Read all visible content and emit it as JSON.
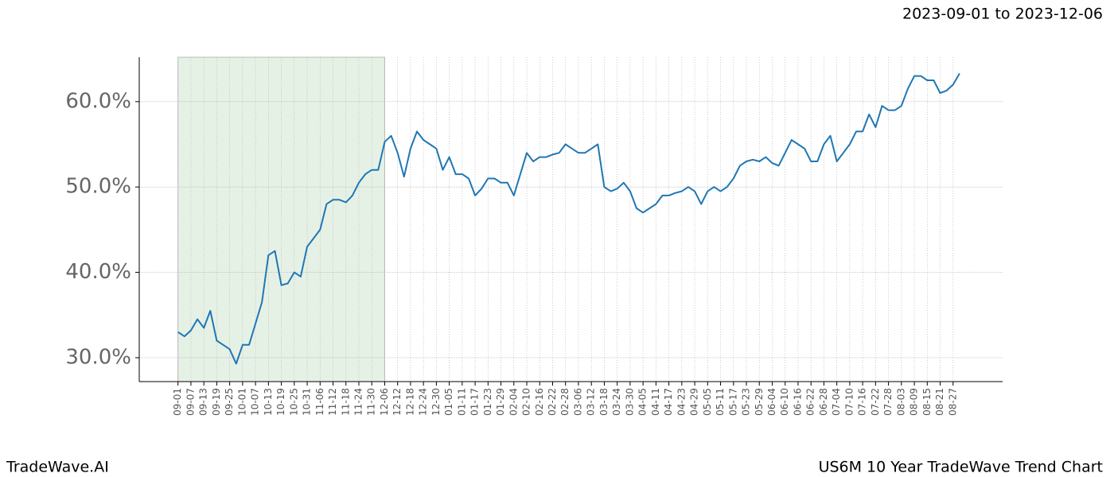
{
  "header": {
    "range": "2023-09-01 to 2023-12-06"
  },
  "footer": {
    "left": "TradeWave.AI",
    "right": "US6M 10 Year TradeWave Trend Chart"
  },
  "chart_data": {
    "type": "line",
    "color": "#1f77b4",
    "shade_color": "#e6f1e6",
    "shade_xlim": [
      0,
      96
    ],
    "grid": true,
    "xlim": [
      -18,
      383
    ],
    "ylim": [
      27.2,
      65.2
    ],
    "yticks": [
      {
        "value": 30,
        "label": "30.0%"
      },
      {
        "value": 40,
        "label": "40.0%"
      },
      {
        "value": 50,
        "label": "50.0%"
      },
      {
        "value": 60,
        "label": "60.0%"
      }
    ],
    "xticks": [
      {
        "value": 0,
        "label": "09-01"
      },
      {
        "value": 6,
        "label": "09-07"
      },
      {
        "value": 12,
        "label": "09-13"
      },
      {
        "value": 18,
        "label": "09-19"
      },
      {
        "value": 24,
        "label": "09-25"
      },
      {
        "value": 30,
        "label": "10-01"
      },
      {
        "value": 36,
        "label": "10-07"
      },
      {
        "value": 42,
        "label": "10-13"
      },
      {
        "value": 48,
        "label": "10-19"
      },
      {
        "value": 54,
        "label": "10-25"
      },
      {
        "value": 60,
        "label": "10-31"
      },
      {
        "value": 66,
        "label": "11-06"
      },
      {
        "value": 72,
        "label": "11-12"
      },
      {
        "value": 78,
        "label": "11-18"
      },
      {
        "value": 84,
        "label": "11-24"
      },
      {
        "value": 90,
        "label": "11-30"
      },
      {
        "value": 96,
        "label": "12-06"
      },
      {
        "value": 102,
        "label": "12-12"
      },
      {
        "value": 108,
        "label": "12-18"
      },
      {
        "value": 114,
        "label": "12-24"
      },
      {
        "value": 120,
        "label": "12-30"
      },
      {
        "value": 126,
        "label": "01-05"
      },
      {
        "value": 132,
        "label": "01-11"
      },
      {
        "value": 138,
        "label": "01-17"
      },
      {
        "value": 144,
        "label": "01-23"
      },
      {
        "value": 150,
        "label": "01-29"
      },
      {
        "value": 156,
        "label": "02-04"
      },
      {
        "value": 162,
        "label": "02-10"
      },
      {
        "value": 168,
        "label": "02-16"
      },
      {
        "value": 174,
        "label": "02-22"
      },
      {
        "value": 180,
        "label": "02-28"
      },
      {
        "value": 186,
        "label": "03-06"
      },
      {
        "value": 192,
        "label": "03-12"
      },
      {
        "value": 198,
        "label": "03-18"
      },
      {
        "value": 204,
        "label": "03-24"
      },
      {
        "value": 210,
        "label": "03-30"
      },
      {
        "value": 216,
        "label": "04-05"
      },
      {
        "value": 222,
        "label": "04-11"
      },
      {
        "value": 228,
        "label": "04-17"
      },
      {
        "value": 234,
        "label": "04-23"
      },
      {
        "value": 240,
        "label": "04-29"
      },
      {
        "value": 246,
        "label": "05-05"
      },
      {
        "value": 252,
        "label": "05-11"
      },
      {
        "value": 258,
        "label": "05-17"
      },
      {
        "value": 264,
        "label": "05-23"
      },
      {
        "value": 270,
        "label": "05-29"
      },
      {
        "value": 276,
        "label": "06-04"
      },
      {
        "value": 282,
        "label": "06-10"
      },
      {
        "value": 288,
        "label": "06-16"
      },
      {
        "value": 294,
        "label": "06-22"
      },
      {
        "value": 300,
        "label": "06-28"
      },
      {
        "value": 306,
        "label": "07-04"
      },
      {
        "value": 312,
        "label": "07-10"
      },
      {
        "value": 318,
        "label": "07-16"
      },
      {
        "value": 324,
        "label": "07-22"
      },
      {
        "value": 330,
        "label": "07-28"
      },
      {
        "value": 336,
        "label": "08-03"
      },
      {
        "value": 342,
        "label": "08-09"
      },
      {
        "value": 348,
        "label": "08-15"
      },
      {
        "value": 354,
        "label": "08-21"
      },
      {
        "value": 360,
        "label": "08-27"
      }
    ],
    "x": [
      0,
      3,
      6,
      9,
      12,
      15,
      18,
      21,
      24,
      27,
      30,
      33,
      36,
      39,
      42,
      45,
      48,
      51,
      54,
      57,
      60,
      63,
      66,
      69,
      72,
      75,
      78,
      81,
      84,
      87,
      90,
      93,
      96,
      99,
      102,
      105,
      108,
      111,
      114,
      117,
      120,
      123,
      126,
      129,
      132,
      135,
      138,
      141,
      144,
      147,
      150,
      153,
      156,
      159,
      162,
      165,
      168,
      171,
      174,
      177,
      180,
      183,
      186,
      189,
      192,
      195,
      198,
      201,
      204,
      207,
      210,
      213,
      216,
      219,
      222,
      225,
      228,
      231,
      234,
      237,
      240,
      243,
      246,
      249,
      252,
      255,
      258,
      261,
      264,
      267,
      270,
      273,
      276,
      279,
      282,
      285,
      288,
      291,
      294,
      297,
      300,
      303,
      306,
      309,
      312,
      315,
      318,
      321,
      324,
      327,
      330,
      333,
      336,
      339,
      342,
      345,
      348,
      351,
      354,
      357,
      360,
      363
    ],
    "values": [
      33.0,
      32.5,
      33.2,
      34.5,
      33.5,
      35.5,
      32,
      31.5,
      31,
      29.3,
      31.5,
      31.5,
      34,
      36.5,
      42,
      42.5,
      38.5,
      38.7,
      40,
      39.5,
      43,
      44,
      45,
      48,
      48.5,
      48.5,
      48.2,
      49,
      50.5,
      51.5,
      52,
      52,
      55.3,
      56,
      54,
      51.2,
      54.5,
      56.5,
      55.5,
      55,
      54.5,
      52,
      53.5,
      51.5,
      51.5,
      51,
      49,
      49.8,
      51,
      51,
      50.5,
      50.5,
      49,
      51.5,
      54,
      53,
      53.5,
      53.5,
      53.8,
      54,
      55,
      54.5,
      54,
      54,
      54.5,
      55,
      50,
      49.5,
      49.8,
      50.5,
      49.5,
      47.5,
      47,
      47.5,
      48,
      49,
      49,
      49.3,
      49.5,
      50,
      49.5,
      48,
      49.5,
      50,
      49.5,
      50,
      51,
      52.5,
      53,
      53.2,
      53,
      53.5,
      52.8,
      52.5,
      54,
      55.5,
      55,
      54.5,
      53,
      53,
      55,
      56,
      53,
      54,
      55,
      56.5,
      56.5,
      58.5,
      57,
      59.5,
      59,
      59,
      59.5,
      61.5,
      63,
      63,
      62.5,
      62.5,
      61,
      61.3,
      62,
      63.3
    ]
  }
}
